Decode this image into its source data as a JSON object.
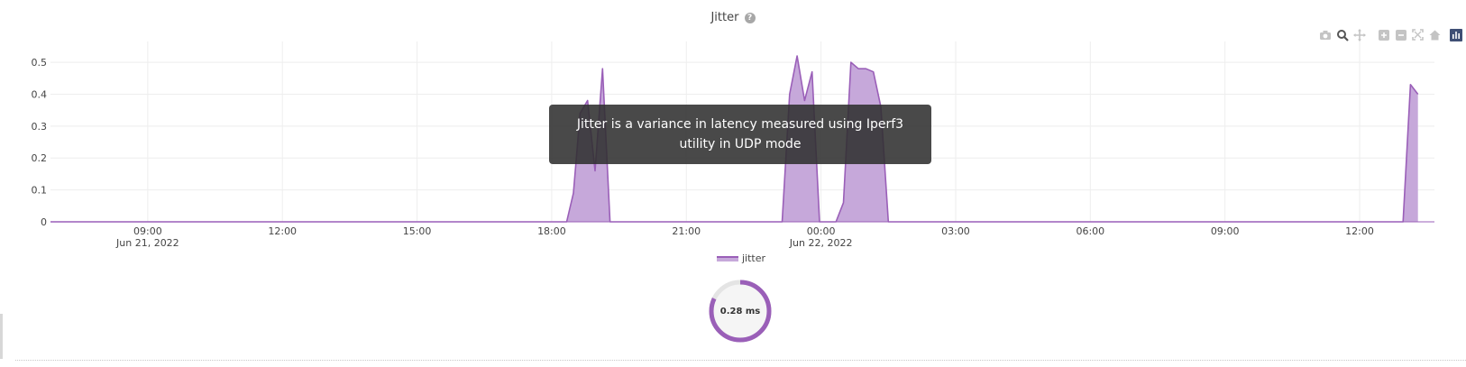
{
  "title": "Jitter",
  "help_icon_glyph": "?",
  "tooltip": "Jitter is a variance in latency measured using Iperf3 utility in UDP mode",
  "legend_label": "jitter",
  "gauge": {
    "value_label": "0.28 ms",
    "fraction": 0.82
  },
  "modebar": [
    "camera-icon",
    "zoom-icon",
    "pan-icon",
    "zoom-in-icon",
    "zoom-out-icon",
    "autoscale-icon",
    "reset-axes-icon",
    "plotly-logo-icon"
  ],
  "colors": {
    "line": "#9a5fb8",
    "fill": "#c6a8da",
    "grid": "#eeeeee",
    "tooltip_bg": "#303030",
    "gauge_track": "#e4e4e4"
  },
  "chart_data": {
    "type": "area",
    "title": "Jitter",
    "xlabel": "",
    "ylabel": "",
    "ylim": [
      0,
      0.52
    ],
    "yticks": [
      0,
      0.1,
      0.2,
      0.3,
      0.4,
      0.5
    ],
    "ytick_labels": [
      "0",
      "0.1",
      "0.2",
      "0.3",
      "0.4",
      "0.5"
    ],
    "xlim": [
      "2022-06-21 06:50",
      "2022-06-22 13:40"
    ],
    "xticks": [
      "2022-06-21 09:00",
      "2022-06-21 12:00",
      "2022-06-21 15:00",
      "2022-06-21 18:00",
      "2022-06-21 21:00",
      "2022-06-22 00:00",
      "2022-06-22 03:00",
      "2022-06-22 06:00",
      "2022-06-22 09:00",
      "2022-06-22 12:00"
    ],
    "xtick_labels": [
      [
        "09:00",
        "Jun 21, 2022"
      ],
      [
        "12:00",
        ""
      ],
      [
        "15:00",
        ""
      ],
      [
        "18:00",
        ""
      ],
      [
        "21:00",
        ""
      ],
      [
        "00:00",
        "Jun 22, 2022"
      ],
      [
        "03:00",
        ""
      ],
      [
        "06:00",
        ""
      ],
      [
        "09:00",
        ""
      ],
      [
        "12:00",
        ""
      ]
    ],
    "grid": true,
    "legend_position": "bottom-center",
    "series": [
      {
        "name": "jitter",
        "x": [
          "2022-06-21 06:50",
          "2022-06-21 18:20",
          "2022-06-21 18:29",
          "2022-06-21 18:38",
          "2022-06-21 18:48",
          "2022-06-21 18:58",
          "2022-06-21 19:08",
          "2022-06-21 19:18",
          "2022-06-21 23:08",
          "2022-06-21 23:18",
          "2022-06-21 23:28",
          "2022-06-21 23:38",
          "2022-06-21 23:48",
          "2022-06-21 23:58",
          "2022-06-22 00:20",
          "2022-06-22 00:30",
          "2022-06-22 00:40",
          "2022-06-22 00:50",
          "2022-06-22 01:00",
          "2022-06-22 01:10",
          "2022-06-22 01:20",
          "2022-06-22 01:30",
          "2022-06-22 12:58",
          "2022-06-22 13:08",
          "2022-06-22 13:18"
        ],
        "y": [
          0,
          0,
          0.09,
          0.34,
          0.38,
          0.16,
          0.48,
          0,
          0,
          0.4,
          0.52,
          0.38,
          0.47,
          0,
          0,
          0.06,
          0.5,
          0.48,
          0.48,
          0.47,
          0.36,
          0,
          0,
          0.43,
          0.4
        ]
      }
    ]
  }
}
